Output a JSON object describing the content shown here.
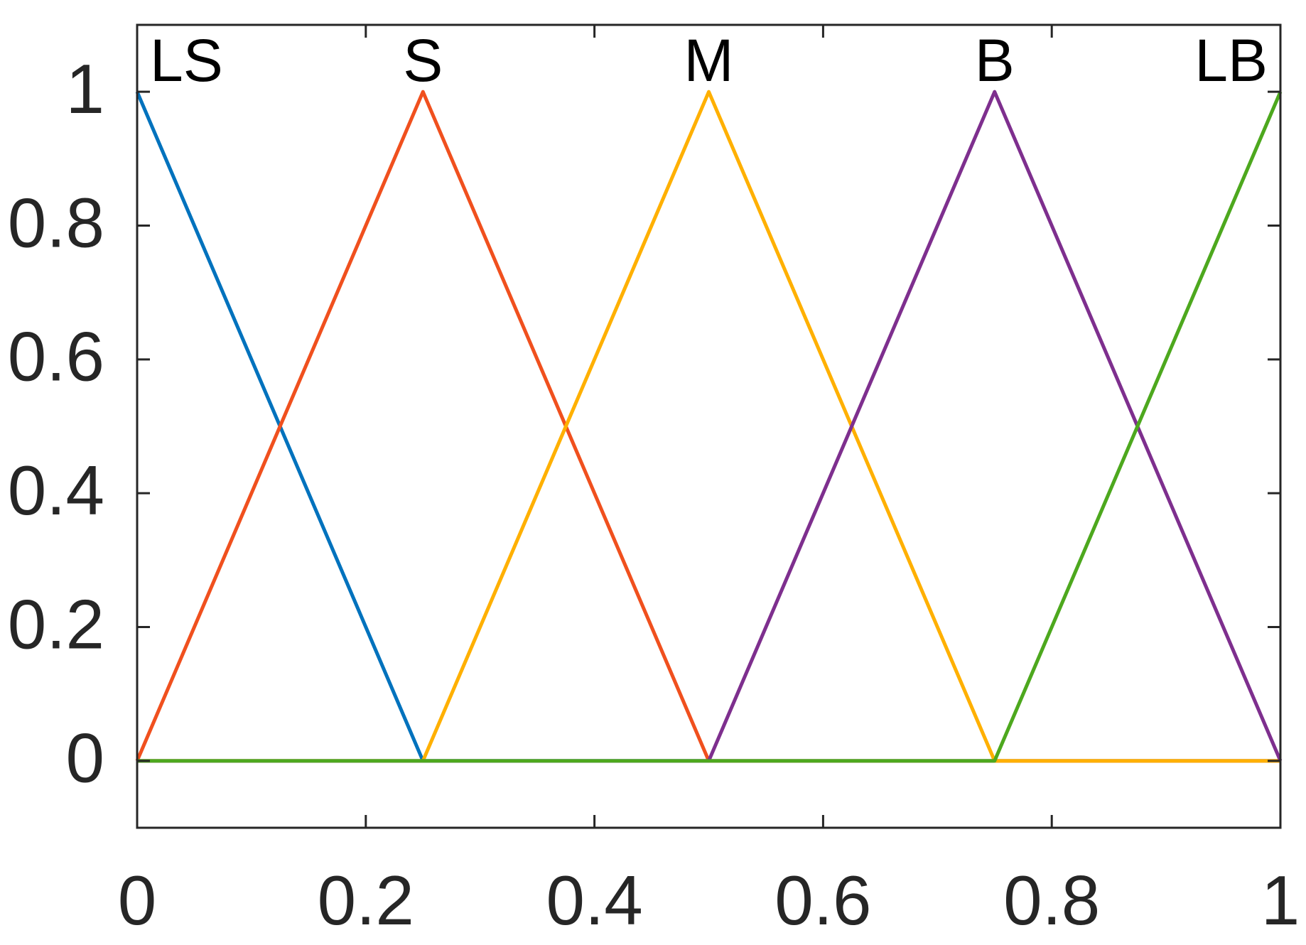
{
  "chart_data": {
    "type": "line",
    "x": [
      0,
      0.25,
      0.5,
      0.75,
      1
    ],
    "series": [
      {
        "name": "LS",
        "color": "#0072BD",
        "values": [
          1,
          0,
          0,
          0,
          0
        ]
      },
      {
        "name": "S",
        "color": "#F0501E",
        "values": [
          0,
          1,
          0,
          0,
          0
        ]
      },
      {
        "name": "M",
        "color": "#FFB000",
        "values": [
          0,
          0,
          1,
          0,
          0
        ]
      },
      {
        "name": "B",
        "color": "#7E2F8E",
        "values": [
          0,
          0,
          0,
          1,
          0
        ]
      },
      {
        "name": "LB",
        "color": "#4DA81E",
        "values": [
          0,
          0,
          0,
          0,
          1
        ]
      }
    ],
    "xlim": [
      0,
      1
    ],
    "xticks": [
      0,
      0.2,
      0.4,
      0.6,
      0.8,
      1
    ],
    "ylim": [
      -0.1,
      1.1
    ],
    "yticks": [
      0,
      0.2,
      0.4,
      0.6,
      0.8,
      1
    ],
    "grid": false
  }
}
